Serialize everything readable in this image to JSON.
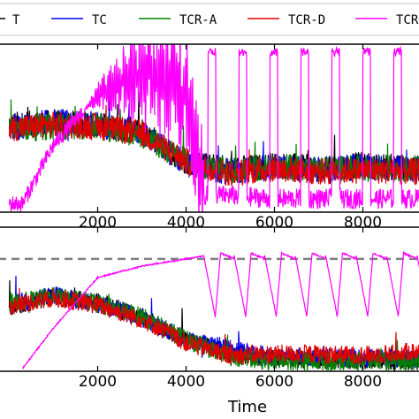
{
  "legend": {
    "placement": "top",
    "entries": [
      {
        "label": "T",
        "color": "#000000"
      },
      {
        "label": "TC",
        "color": "#0000ee"
      },
      {
        "label": "TCR-A",
        "color": "#008000"
      },
      {
        "label": "TCR-D",
        "color": "#e00000"
      },
      {
        "label": "TCR-",
        "color": "#ff00ff"
      }
    ]
  },
  "chart_data": [
    {
      "type": "line",
      "panel": "top",
      "xlabel": "",
      "ylabel": "",
      "xlim": [
        -250,
        9350
      ],
      "ylim": [
        0,
        1
      ],
      "x_ticks": [
        2000,
        4000,
        6000,
        8000
      ],
      "x_tick_labels": [
        "2000",
        "4000",
        "6000",
        "8000"
      ],
      "grid": false,
      "series": [
        {
          "name": "T",
          "color": "#000000",
          "x": [
            0,
            1000,
            2000,
            3000,
            4000,
            5000,
            6000,
            7000,
            8000,
            9300
          ],
          "y": [
            0.52,
            0.53,
            0.52,
            0.48,
            0.3,
            0.25,
            0.28,
            0.26,
            0.28,
            0.26
          ]
        },
        {
          "name": "TC",
          "color": "#0000ee",
          "x": [
            0,
            1000,
            2000,
            3000,
            4000,
            5000,
            6000,
            7000,
            8000,
            9300
          ],
          "y": [
            0.5,
            0.54,
            0.52,
            0.47,
            0.29,
            0.24,
            0.27,
            0.25,
            0.27,
            0.25
          ]
        },
        {
          "name": "TCR-A",
          "color": "#008000",
          "x": [
            0,
            1000,
            2000,
            3000,
            4000,
            5000,
            6000,
            7000,
            8000,
            9300
          ],
          "y": [
            0.49,
            0.51,
            0.51,
            0.46,
            0.3,
            0.24,
            0.27,
            0.26,
            0.26,
            0.26
          ]
        },
        {
          "name": "TCR-D",
          "color": "#e00000",
          "x": [
            0,
            1000,
            2000,
            3000,
            4000,
            5000,
            6000,
            7000,
            8000,
            9300
          ],
          "y": [
            0.5,
            0.52,
            0.51,
            0.47,
            0.3,
            0.23,
            0.26,
            0.24,
            0.25,
            0.24
          ]
        },
        {
          "name": "TCR-",
          "color": "#ff00ff",
          "x": [
            0,
            300,
            800,
            1000,
            2000,
            3000,
            4000,
            4400,
            5000,
            6000,
            7000,
            8000,
            9300
          ],
          "y": [
            0.05,
            0.05,
            0.3,
            0.4,
            0.7,
            0.82,
            0.7,
            0.1,
            0.1,
            0.08,
            0.08,
            0.08,
            0.08
          ]
        }
      ]
    },
    {
      "type": "line",
      "panel": "bottom",
      "xlabel": "Time",
      "ylabel": "",
      "xlim": [
        -250,
        9350
      ],
      "ylim": [
        0,
        1
      ],
      "x_ticks": [
        2000,
        4000,
        6000,
        8000
      ],
      "x_tick_labels": [
        "2000",
        "4000",
        "6000",
        "8000"
      ],
      "reference_line": {
        "y": 0.78,
        "style": "dashed",
        "color": "#808080"
      },
      "grid": false,
      "series": [
        {
          "name": "T",
          "color": "#000000",
          "x": [
            0,
            1000,
            2000,
            3000,
            4000,
            5000,
            6000,
            7000,
            8000,
            9300
          ],
          "y": [
            0.45,
            0.52,
            0.48,
            0.38,
            0.22,
            0.12,
            0.09,
            0.08,
            0.08,
            0.07
          ]
        },
        {
          "name": "TC",
          "color": "#0000ee",
          "x": [
            0,
            1000,
            2000,
            3000,
            4000,
            5000,
            6000,
            7000,
            8000,
            9300
          ],
          "y": [
            0.46,
            0.53,
            0.47,
            0.37,
            0.22,
            0.16,
            0.1,
            0.1,
            0.09,
            0.09
          ]
        },
        {
          "name": "TCR-A",
          "color": "#008000",
          "x": [
            0,
            1000,
            2000,
            3000,
            4000,
            5000,
            6000,
            7000,
            8000,
            9300
          ],
          "y": [
            0.47,
            0.52,
            0.47,
            0.38,
            0.22,
            0.1,
            0.07,
            0.07,
            0.07,
            0.07
          ]
        },
        {
          "name": "TCR-D",
          "color": "#e00000",
          "x": [
            0,
            1000,
            2000,
            3000,
            4000,
            5000,
            6000,
            7000,
            8000,
            9300
          ],
          "y": [
            0.45,
            0.51,
            0.46,
            0.36,
            0.2,
            0.11,
            0.12,
            0.12,
            0.11,
            0.14
          ]
        },
        {
          "name": "TCR-",
          "color": "#ff00ff",
          "x": [
            300,
            1000,
            2000,
            3000,
            4000,
            4400,
            5000,
            6000,
            7000,
            8000,
            9300
          ],
          "y": [
            0.02,
            0.3,
            0.65,
            0.73,
            0.78,
            0.8,
            0.7,
            0.68,
            0.7,
            0.7,
            0.72
          ]
        }
      ]
    }
  ]
}
